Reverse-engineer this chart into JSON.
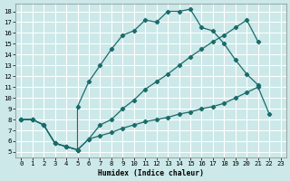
{
  "xlabel": "Humidex (Indice chaleur)",
  "bg_color": "#cce8e8",
  "grid_color": "#ffffff",
  "line_color": "#1a6b6b",
  "xlim": [
    -0.5,
    23.5
  ],
  "ylim": [
    4.5,
    18.7
  ],
  "xticks": [
    0,
    1,
    2,
    3,
    4,
    5,
    6,
    7,
    8,
    9,
    10,
    11,
    12,
    13,
    14,
    15,
    16,
    17,
    18,
    19,
    20,
    21,
    22,
    23
  ],
  "yticks": [
    5,
    6,
    7,
    8,
    9,
    10,
    11,
    12,
    13,
    14,
    15,
    16,
    17,
    18
  ],
  "line1_x": [
    0,
    1,
    2,
    3,
    4,
    5,
    5,
    6,
    7,
    8,
    9,
    10,
    11,
    12,
    13,
    14,
    15,
    16,
    17,
    18,
    19,
    20,
    21
  ],
  "line1_y": [
    8,
    8,
    7.5,
    5.8,
    5.5,
    5.2,
    9.2,
    11.5,
    13.0,
    14.5,
    15.8,
    16.2,
    17.2,
    17.0,
    18.0,
    18.0,
    18.2,
    16.5,
    16.2,
    15.0,
    13.5,
    12.2,
    11.2
  ],
  "line2_x": [
    0,
    1,
    2,
    3,
    4,
    5,
    6,
    7,
    8,
    9,
    10,
    11,
    12,
    13,
    14,
    15,
    16,
    17,
    18,
    19,
    20,
    21
  ],
  "line2_y": [
    8,
    8,
    7.5,
    5.8,
    5.5,
    5.2,
    6.2,
    7.5,
    8.0,
    9.0,
    9.8,
    10.8,
    11.5,
    12.2,
    13.0,
    13.8,
    14.5,
    15.2,
    15.8,
    16.5,
    17.2,
    15.2
  ],
  "line3_x": [
    0,
    1,
    2,
    3,
    4,
    5,
    6,
    7,
    8,
    9,
    10,
    11,
    12,
    13,
    14,
    15,
    16,
    17,
    18,
    19,
    20,
    21,
    22
  ],
  "line3_y": [
    8,
    8,
    7.5,
    5.8,
    5.5,
    5.2,
    6.2,
    6.5,
    6.8,
    7.2,
    7.5,
    7.8,
    8.0,
    8.2,
    8.5,
    8.7,
    9.0,
    9.2,
    9.5,
    10.0,
    10.5,
    11.0,
    8.5
  ]
}
